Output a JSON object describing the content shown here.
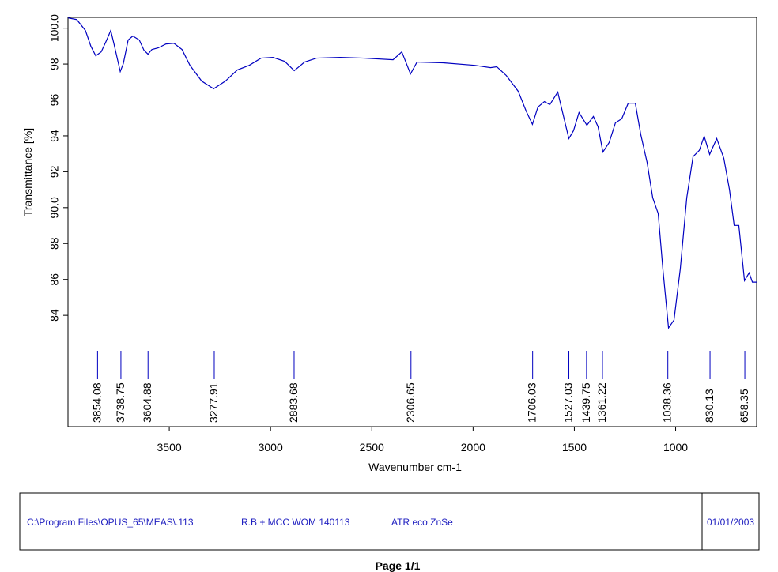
{
  "chart_data": {
    "type": "line",
    "x_label": "Wavenumber cm-1",
    "y_label": "Transmittance [%]",
    "x": [
      4000,
      3957,
      3914,
      3887,
      3863,
      3836,
      3809,
      3789,
      3773,
      3742,
      3727,
      3703,
      3680,
      3648,
      3625,
      3605,
      3586,
      3555,
      3516,
      3477,
      3437,
      3398,
      3340,
      3281,
      3223,
      3164,
      3105,
      3047,
      2988,
      2930,
      2883,
      2832,
      2773,
      2656,
      2539,
      2395,
      2352,
      2309,
      2277,
      2148,
      1992,
      1914,
      1883,
      1836,
      1777,
      1738,
      1707,
      1680,
      1648,
      1621,
      1582,
      1555,
      1527,
      1504,
      1477,
      1438,
      1406,
      1383,
      1359,
      1328,
      1297,
      1266,
      1234,
      1199,
      1172,
      1141,
      1113,
      1086,
      1063,
      1035,
      1008,
      977,
      945,
      914,
      883,
      859,
      832,
      797,
      762,
      734,
      711,
      688,
      660,
      637,
      621,
      598
    ],
    "series": [
      {
        "color": "#0000c0",
        "values": [
          100.57,
          100.48,
          99.87,
          98.99,
          98.46,
          98.68,
          99.34,
          99.87,
          99.12,
          97.58,
          98.02,
          99.34,
          99.56,
          99.34,
          98.77,
          98.55,
          98.81,
          98.9,
          99.12,
          99.16,
          98.81,
          97.93,
          97.05,
          96.62,
          97.05,
          97.67,
          97.93,
          98.33,
          98.37,
          98.15,
          97.63,
          98.11,
          98.33,
          98.37,
          98.33,
          98.24,
          98.68,
          97.45,
          98.11,
          98.07,
          97.93,
          97.8,
          97.85,
          97.36,
          96.48,
          95.38,
          94.64,
          95.6,
          95.91,
          95.74,
          96.44,
          95.16,
          93.85,
          94.29,
          95.3,
          94.59,
          95.08,
          94.51,
          93.1,
          93.63,
          94.73,
          94.95,
          95.82,
          95.82,
          94.07,
          92.53,
          90.55,
          89.67,
          86.59,
          83.3,
          83.74,
          86.59,
          90.55,
          92.84,
          93.19,
          93.98,
          92.97,
          93.85,
          92.75,
          90.99,
          89.01,
          89.01,
          85.93,
          86.37,
          85.85,
          85.85
        ]
      }
    ],
    "peaks": [
      3854.08,
      3738.75,
      3604.88,
      3277.91,
      2883.68,
      2306.65,
      1706.03,
      1527.03,
      1439.75,
      1361.22,
      1038.36,
      830.13,
      658.35
    ],
    "xlim": [
      4000,
      600
    ],
    "ylim": [
      77.8,
      100.6
    ],
    "xticks": [
      3500,
      3000,
      2500,
      2000,
      1500,
      1000
    ],
    "yticks": [
      84,
      86,
      88,
      {
        "value": 90,
        "label": "90.0"
      },
      92,
      94,
      96,
      98,
      {
        "value": 100,
        "label": "100.0"
      }
    ],
    "peak_color": "#0000c0"
  },
  "footer": {
    "path": "C:\\Program Files\\OPUS_65\\MEAS\\.113",
    "sample": "R.B + MCC WOM 140113",
    "method": "ATR eco ZnSe",
    "date": "01/01/2003"
  },
  "page": "Page 1/1"
}
